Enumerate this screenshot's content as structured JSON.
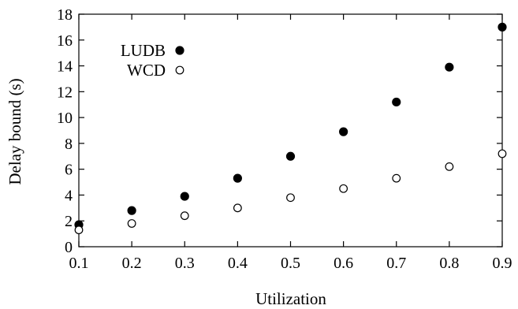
{
  "chart_data": {
    "type": "scatter",
    "xlabel": "Utilization",
    "ylabel": "Delay bound (s)",
    "xlim": [
      0.1,
      0.9
    ],
    "ylim": [
      0,
      18
    ],
    "x_ticks": [
      "0.1",
      "0.2",
      "0.3",
      "0.4",
      "0.5",
      "0.6",
      "0.7",
      "0.8",
      "0.9"
    ],
    "y_ticks": [
      "0",
      "2",
      "4",
      "6",
      "8",
      "10",
      "12",
      "14",
      "16",
      "18"
    ],
    "grid": false,
    "legend_position": "top-left",
    "series": [
      {
        "name": "LUDB",
        "marker": "filled-circle",
        "color": "#000000",
        "x": [
          0.1,
          0.2,
          0.3,
          0.4,
          0.5,
          0.6,
          0.7,
          0.8,
          0.9
        ],
        "y": [
          1.7,
          2.8,
          3.9,
          5.3,
          7.0,
          8.9,
          11.2,
          13.9,
          17.0
        ]
      },
      {
        "name": "WCD",
        "marker": "open-circle",
        "color": "#000000",
        "x": [
          0.1,
          0.2,
          0.3,
          0.4,
          0.5,
          0.6,
          0.7,
          0.8,
          0.9
        ],
        "y": [
          1.3,
          1.8,
          2.4,
          3.0,
          3.8,
          4.5,
          5.3,
          6.2,
          7.2
        ]
      }
    ]
  }
}
